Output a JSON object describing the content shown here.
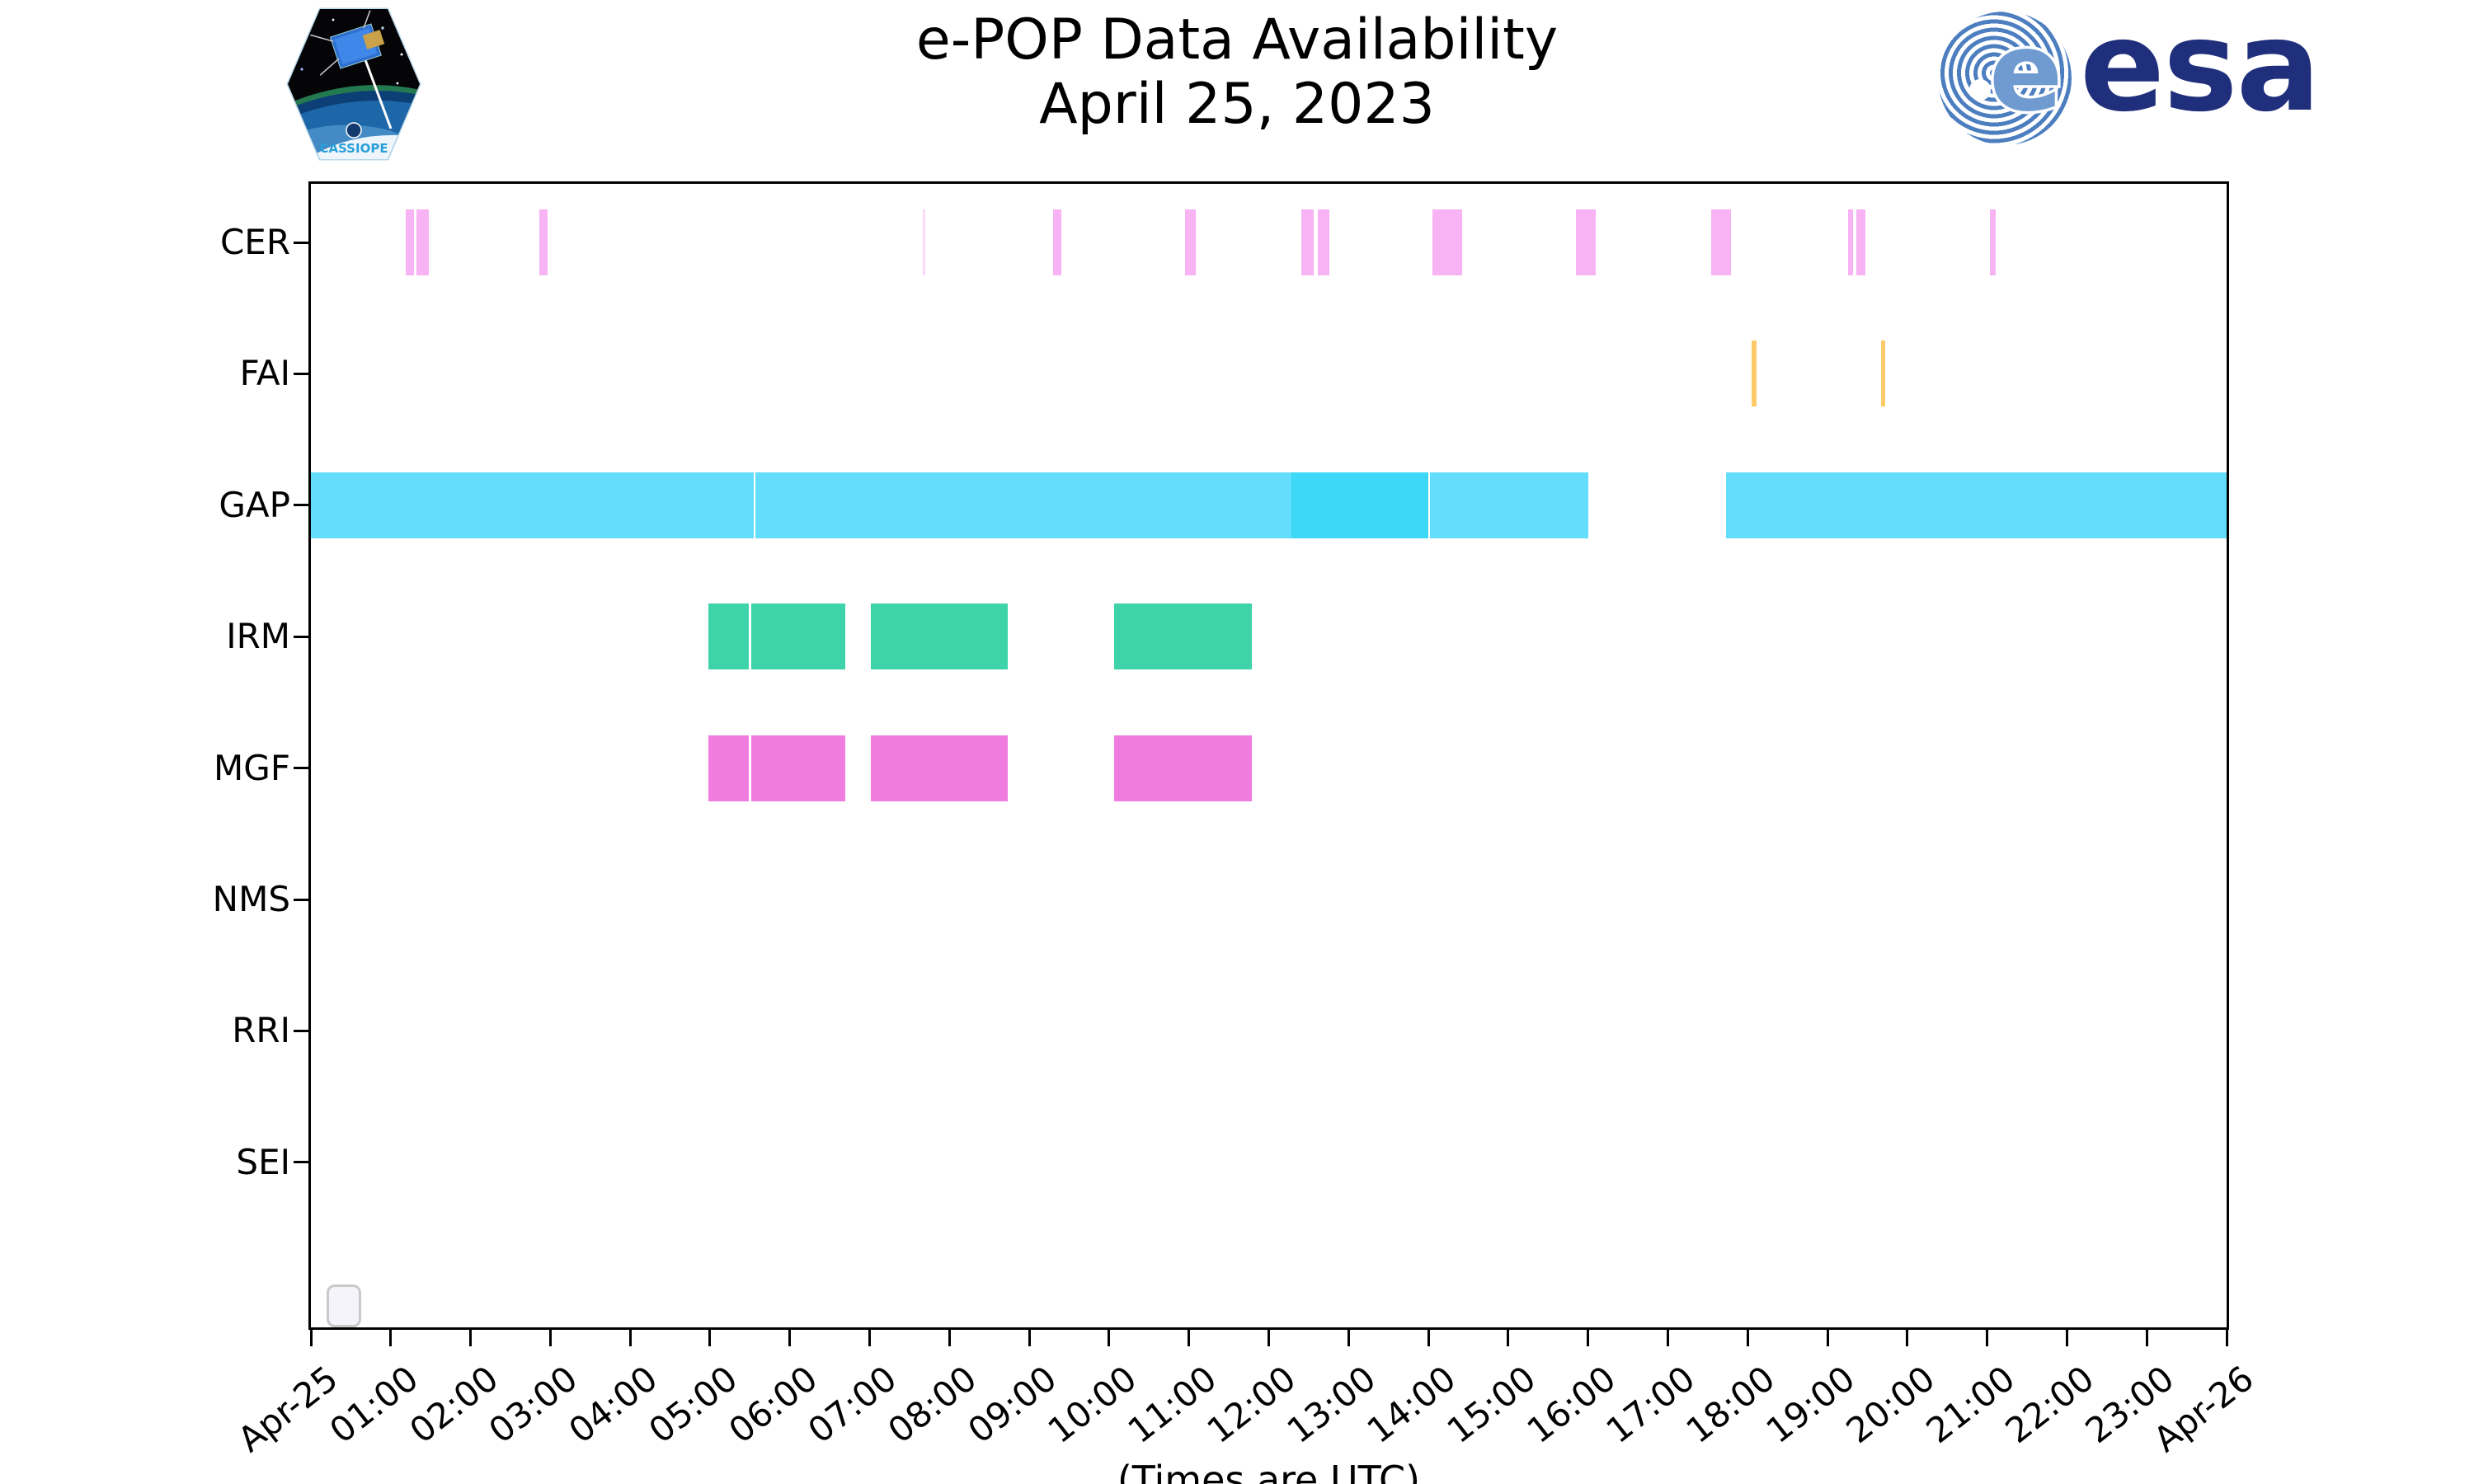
{
  "header": {
    "title_line1": "e-POP Data Availability",
    "title_line2": "April 25, 2023",
    "cassiope_patch_label": "CASSIOPE",
    "esa_wordmark": "esa"
  },
  "footer": {
    "utc_note": "(Times are UTC)"
  },
  "colors": {
    "cer": "#f7b3f3",
    "cer_faint": "#fbd9f7",
    "fai": "#fcca67",
    "gap": "#62ddfb",
    "gap_overlap": "#3dd7f7",
    "irm": "#3ed3a8",
    "mgf": "#f07ce0",
    "axis": "#000000",
    "esa_blue": "#1f2f7c",
    "esa_globe_stripe": "#4d7fc0"
  },
  "chart_data": {
    "type": "bar",
    "subtype": "horizontal-availability-timeline",
    "title": "e-POP Data Availability",
    "subtitle": "April 25, 2023",
    "xlabel": "(Times are UTC)",
    "x_unit": "hours UTC on 2023-04-25",
    "xlim": [
      0,
      24
    ],
    "grid": false,
    "legend": "empty-box-bottom-left",
    "x_tick_labels": [
      "Apr-25",
      "01:00",
      "02:00",
      "03:00",
      "04:00",
      "05:00",
      "06:00",
      "07:00",
      "08:00",
      "09:00",
      "10:00",
      "11:00",
      "12:00",
      "13:00",
      "14:00",
      "15:00",
      "16:00",
      "17:00",
      "18:00",
      "19:00",
      "20:00",
      "21:00",
      "22:00",
      "23:00",
      "Apr-26"
    ],
    "rows": [
      {
        "label": "CER",
        "color": "#f7b3f3",
        "segments": [
          {
            "start": 1.19,
            "end": 1.29
          },
          {
            "start": 1.32,
            "end": 1.48
          },
          {
            "start": 2.86,
            "end": 2.97
          },
          {
            "start": 7.67,
            "end": 7.7,
            "color": "#fbd9f7"
          },
          {
            "start": 9.3,
            "end": 9.4
          },
          {
            "start": 10.95,
            "end": 11.09
          },
          {
            "start": 12.41,
            "end": 12.56
          },
          {
            "start": 12.61,
            "end": 12.76
          },
          {
            "start": 14.05,
            "end": 14.42
          },
          {
            "start": 15.85,
            "end": 16.1
          },
          {
            "start": 17.54,
            "end": 17.79
          },
          {
            "start": 19.26,
            "end": 19.32
          },
          {
            "start": 19.36,
            "end": 19.47
          },
          {
            "start": 21.03,
            "end": 21.11
          }
        ]
      },
      {
        "label": "FAI",
        "color": "#fcca67",
        "segments": [
          {
            "start": 18.05,
            "end": 18.11
          },
          {
            "start": 19.67,
            "end": 19.72
          }
        ]
      },
      {
        "label": "GAP",
        "color": "#62ddfb",
        "segments": [
          {
            "start": 0.0,
            "end": 5.55
          },
          {
            "start": 5.57,
            "end": 12.28
          },
          {
            "start": 12.28,
            "end": 14.0,
            "color": "#3dd7f7"
          },
          {
            "start": 14.02,
            "end": 16.0
          },
          {
            "start": 17.73,
            "end": 24.0
          }
        ]
      },
      {
        "label": "IRM",
        "color": "#3ed3a8",
        "segments": [
          {
            "start": 4.98,
            "end": 5.49
          },
          {
            "start": 5.52,
            "end": 6.69
          },
          {
            "start": 7.01,
            "end": 8.73
          },
          {
            "start": 10.06,
            "end": 11.79
          }
        ]
      },
      {
        "label": "MGF",
        "color": "#f07ce0",
        "segments": [
          {
            "start": 4.98,
            "end": 5.49
          },
          {
            "start": 5.52,
            "end": 6.69
          },
          {
            "start": 7.01,
            "end": 8.73
          },
          {
            "start": 10.06,
            "end": 11.79
          }
        ]
      },
      {
        "label": "NMS",
        "color": "#cccccc",
        "segments": []
      },
      {
        "label": "RRI",
        "color": "#cccccc",
        "segments": []
      },
      {
        "label": "SEI",
        "color": "#cccccc",
        "segments": []
      }
    ]
  }
}
